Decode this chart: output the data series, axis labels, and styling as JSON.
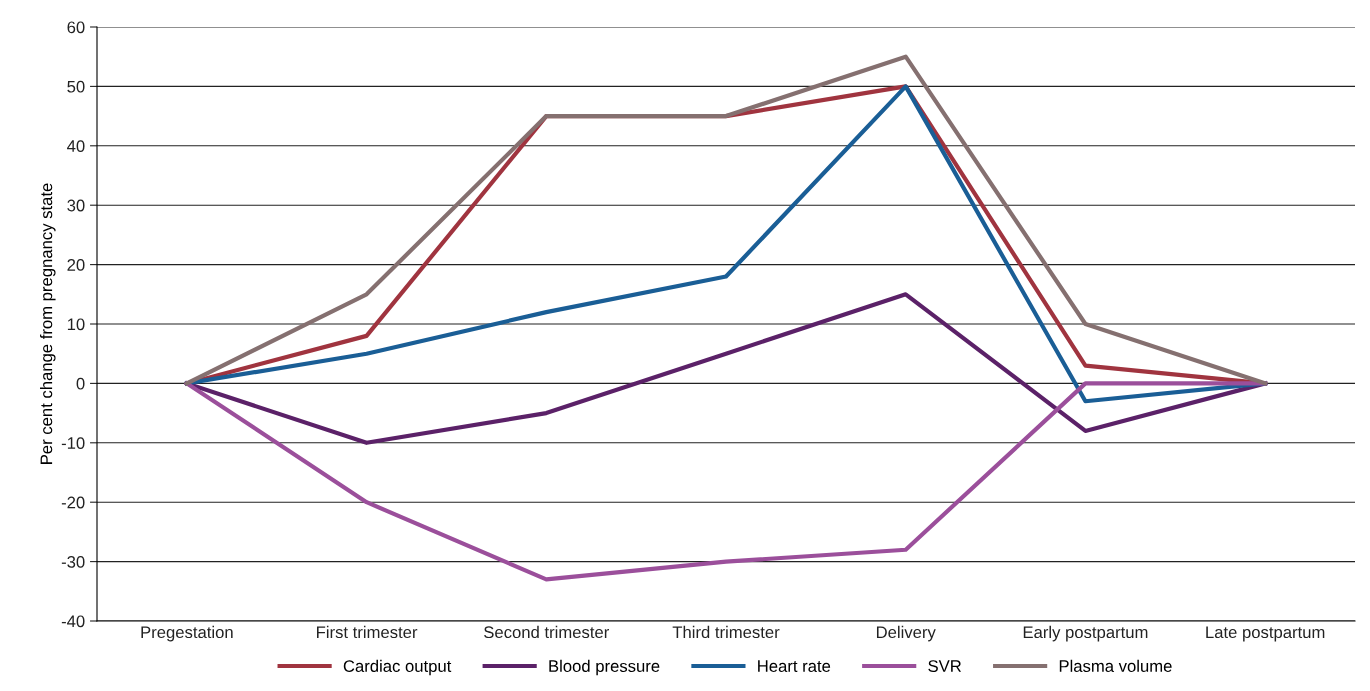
{
  "chart_data": {
    "type": "line",
    "ylabel": "Per cent change from pregnancy state",
    "categories": [
      "Pregestation",
      "First trimester",
      "Second trimester",
      "Third trimester",
      "Delivery",
      "Early postpartum",
      "Late postpartum"
    ],
    "series": [
      {
        "name": "Cardiac output",
        "color": "#a0343f",
        "values": [
          0,
          8,
          45,
          45,
          50,
          3,
          0
        ]
      },
      {
        "name": "Blood pressure",
        "color": "#5b2168",
        "values": [
          0,
          -10,
          -5,
          5,
          15,
          -8,
          0
        ]
      },
      {
        "name": "Heart rate",
        "color": "#1a5e96",
        "values": [
          0,
          5,
          12,
          18,
          50,
          -3,
          0
        ]
      },
      {
        "name": "SVR",
        "color": "#9b4f9b",
        "values": [
          0,
          -20,
          -33,
          -30,
          -28,
          0,
          0
        ]
      },
      {
        "name": "Plasma volume",
        "color": "#857070",
        "values": [
          0,
          15,
          45,
          45,
          55,
          10,
          0
        ]
      }
    ],
    "ylim": [
      -40,
      60
    ],
    "yticks": [
      -40,
      -30,
      -20,
      -10,
      0,
      10,
      20,
      30,
      40,
      50,
      60
    ],
    "grid": "y",
    "legend": "bottom",
    "marker": "none",
    "line_style": "solid"
  }
}
